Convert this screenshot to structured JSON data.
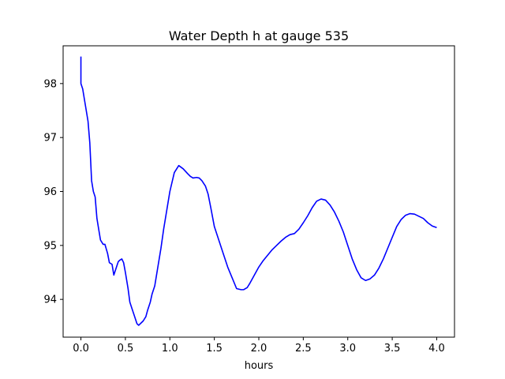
{
  "chart_data": {
    "type": "line",
    "title": "Water Depth h at gauge 535",
    "xlabel": "hours",
    "ylabel": "",
    "xlim": [
      -0.2,
      4.2
    ],
    "ylim": [
      93.3,
      98.7
    ],
    "xticks": [
      0.0,
      0.5,
      1.0,
      1.5,
      2.0,
      2.5,
      3.0,
      3.5,
      4.0
    ],
    "xtick_labels": [
      "0.0",
      "0.5",
      "1.0",
      "1.5",
      "2.0",
      "2.5",
      "3.0",
      "3.5",
      "4.0"
    ],
    "yticks": [
      94,
      95,
      96,
      97,
      98
    ],
    "ytick_labels": [
      "94",
      "95",
      "96",
      "97",
      "98"
    ],
    "grid": false,
    "series": [
      {
        "color": "#0000ff",
        "x": [
          0.0,
          0.0,
          0.0,
          0.02,
          0.05,
          0.08,
          0.1,
          0.12,
          0.14,
          0.16,
          0.18,
          0.2,
          0.22,
          0.25,
          0.27,
          0.3,
          0.32,
          0.35,
          0.37,
          0.4,
          0.42,
          0.44,
          0.46,
          0.48,
          0.5,
          0.53,
          0.55,
          0.58,
          0.6,
          0.63,
          0.65,
          0.7,
          0.73,
          0.75,
          0.78,
          0.8,
          0.83,
          0.86,
          0.9,
          0.93,
          0.97,
          1.0,
          1.05,
          1.1,
          1.15,
          1.2,
          1.23,
          1.26,
          1.3,
          1.33,
          1.36,
          1.4,
          1.43,
          1.46,
          1.5,
          1.55,
          1.6,
          1.65,
          1.7,
          1.75,
          1.8,
          1.83,
          1.87,
          1.9,
          1.95,
          2.0,
          2.05,
          2.1,
          2.15,
          2.2,
          2.25,
          2.3,
          2.35,
          2.4,
          2.45,
          2.5,
          2.55,
          2.6,
          2.65,
          2.7,
          2.75,
          2.8,
          2.85,
          2.9,
          2.95,
          3.0,
          3.05,
          3.1,
          3.15,
          3.2,
          3.25,
          3.3,
          3.35,
          3.4,
          3.45,
          3.5,
          3.55,
          3.6,
          3.65,
          3.7,
          3.75,
          3.8,
          3.85,
          3.9,
          3.95,
          4.0
        ],
        "y": [
          98.5,
          98.2,
          98.0,
          97.9,
          97.6,
          97.3,
          96.9,
          96.2,
          96.0,
          95.9,
          95.5,
          95.3,
          95.1,
          95.02,
          95.02,
          94.85,
          94.68,
          94.65,
          94.45,
          94.6,
          94.7,
          94.73,
          94.75,
          94.68,
          94.5,
          94.2,
          93.95,
          93.8,
          93.7,
          93.55,
          93.52,
          93.6,
          93.68,
          93.8,
          93.95,
          94.1,
          94.25,
          94.55,
          94.95,
          95.3,
          95.7,
          96.0,
          96.35,
          96.48,
          96.42,
          96.33,
          96.28,
          96.25,
          96.26,
          96.25,
          96.2,
          96.1,
          95.95,
          95.7,
          95.35,
          95.1,
          94.85,
          94.6,
          94.4,
          94.2,
          94.18,
          94.18,
          94.22,
          94.3,
          94.45,
          94.6,
          94.72,
          94.82,
          94.92,
          95.0,
          95.08,
          95.15,
          95.2,
          95.22,
          95.3,
          95.42,
          95.55,
          95.7,
          95.82,
          95.86,
          95.84,
          95.75,
          95.62,
          95.45,
          95.25,
          95.0,
          94.75,
          94.55,
          94.4,
          94.35,
          94.38,
          94.45,
          94.58,
          94.75,
          94.95,
          95.15,
          95.35,
          95.48,
          95.56,
          95.59,
          95.58,
          95.54,
          95.5,
          95.42,
          95.36,
          95.33
        ]
      }
    ]
  }
}
